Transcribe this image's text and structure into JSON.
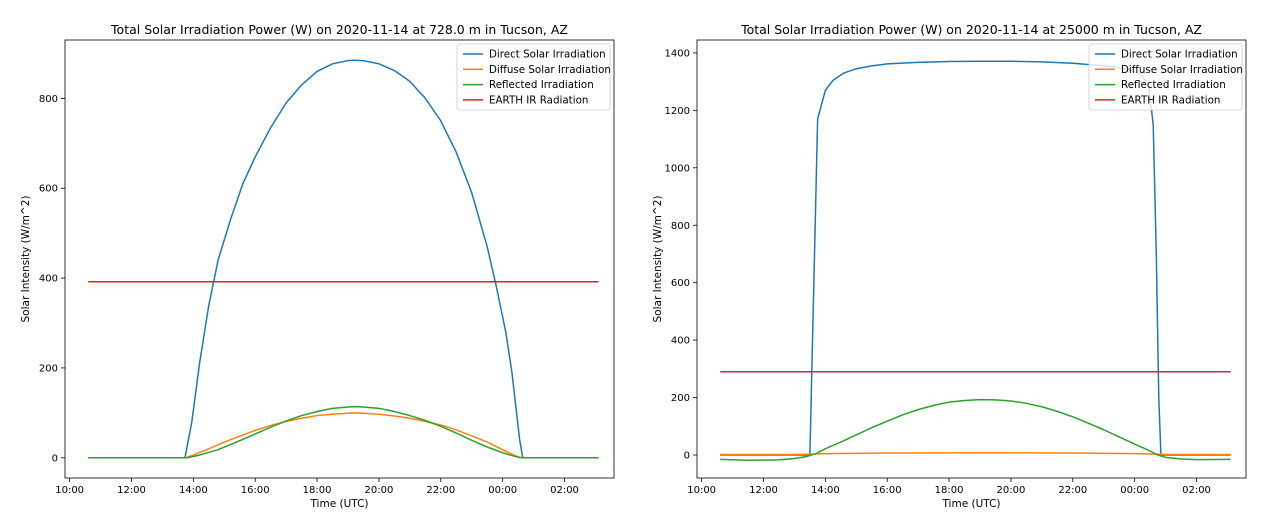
{
  "chart_data": [
    {
      "type": "line",
      "title": "Total Solar Irradiation Power (W) on 2020-11-14 at 728.0 m in Tucson, AZ",
      "xlabel": "Time (UTC)",
      "ylabel": "Solar Intensity (W/m^2)",
      "x_ticks": [
        "10:00",
        "12:00",
        "14:00",
        "16:00",
        "18:00",
        "20:00",
        "22:00",
        "00:00",
        "02:00"
      ],
      "y_ticks": [
        0,
        200,
        400,
        600,
        800
      ],
      "xlim_hours": [
        9.85,
        27.6
      ],
      "ylim": [
        -45,
        930
      ],
      "grid": false,
      "legend_position": "top-right",
      "series": [
        {
          "name": "Direct Solar Irradiation",
          "color": "#1f77b4",
          "points": [
            [
              10.6,
              0
            ],
            [
              13.73,
              0
            ],
            [
              13.95,
              80
            ],
            [
              14.2,
              210
            ],
            [
              14.5,
              340
            ],
            [
              14.8,
              440
            ],
            [
              15.2,
              530
            ],
            [
              15.6,
              610
            ],
            [
              16.0,
              670
            ],
            [
              16.5,
              735
            ],
            [
              17.0,
              790
            ],
            [
              17.5,
              830
            ],
            [
              18.0,
              860
            ],
            [
              18.5,
              877
            ],
            [
              19.0,
              884
            ],
            [
              19.2,
              885
            ],
            [
              19.5,
              884
            ],
            [
              20.0,
              877
            ],
            [
              20.5,
              862
            ],
            [
              21.0,
              838
            ],
            [
              21.5,
              800
            ],
            [
              22.0,
              750
            ],
            [
              22.5,
              680
            ],
            [
              23.0,
              590
            ],
            [
              23.5,
              470
            ],
            [
              23.8,
              380
            ],
            [
              24.1,
              280
            ],
            [
              24.3,
              190
            ],
            [
              24.45,
              100
            ],
            [
              24.55,
              40
            ],
            [
              24.65,
              0
            ],
            [
              27.1,
              0
            ]
          ]
        },
        {
          "name": "Diffuse Solar Irradiation",
          "color": "#ff7f0e",
          "points": [
            [
              10.6,
              0
            ],
            [
              13.75,
              0
            ],
            [
              14.0,
              6
            ],
            [
              14.5,
              20
            ],
            [
              15.0,
              35
            ],
            [
              15.5,
              48
            ],
            [
              16.0,
              61
            ],
            [
              16.5,
              72
            ],
            [
              17.0,
              81
            ],
            [
              17.5,
              88
            ],
            [
              18.0,
              94
            ],
            [
              18.5,
              97
            ],
            [
              19.0,
              99
            ],
            [
              19.2,
              100
            ],
            [
              19.5,
              99
            ],
            [
              20.0,
              97
            ],
            [
              20.5,
              93
            ],
            [
              21.0,
              88
            ],
            [
              21.5,
              81
            ],
            [
              22.0,
              73
            ],
            [
              22.5,
              62
            ],
            [
              23.0,
              49
            ],
            [
              23.5,
              35
            ],
            [
              24.0,
              18
            ],
            [
              24.3,
              8
            ],
            [
              24.5,
              2
            ],
            [
              24.6,
              0
            ],
            [
              27.1,
              0
            ]
          ]
        },
        {
          "name": "Reflected Irradiation",
          "color": "#2ca02c",
          "points": [
            [
              10.6,
              0
            ],
            [
              13.8,
              0
            ],
            [
              14.2,
              6
            ],
            [
              14.8,
              18
            ],
            [
              15.5,
              38
            ],
            [
              16.0,
              53
            ],
            [
              16.5,
              68
            ],
            [
              17.0,
              82
            ],
            [
              17.5,
              94
            ],
            [
              18.0,
              103
            ],
            [
              18.5,
              110
            ],
            [
              19.0,
              113
            ],
            [
              19.2,
              114
            ],
            [
              19.5,
              113
            ],
            [
              20.0,
              110
            ],
            [
              20.5,
              103
            ],
            [
              21.0,
              94
            ],
            [
              21.5,
              83
            ],
            [
              22.0,
              70
            ],
            [
              22.5,
              55
            ],
            [
              23.0,
              39
            ],
            [
              23.5,
              24
            ],
            [
              24.0,
              11
            ],
            [
              24.4,
              3
            ],
            [
              24.6,
              0
            ],
            [
              27.1,
              0
            ]
          ]
        },
        {
          "name": "EARTH IR Radiation",
          "color": "#d62728",
          "points": [
            [
              10.6,
              392
            ],
            [
              27.1,
              392
            ]
          ]
        }
      ]
    },
    {
      "type": "line",
      "title": "Total Solar Irradiation Power (W) on 2020-11-14 at 25000 m in Tucson, AZ",
      "xlabel": "Time (UTC)",
      "ylabel": "Solar Intensity (W/m^2)",
      "x_ticks": [
        "10:00",
        "12:00",
        "14:00",
        "16:00",
        "18:00",
        "20:00",
        "22:00",
        "00:00",
        "02:00"
      ],
      "y_ticks": [
        0,
        200,
        400,
        600,
        800,
        1000,
        1200,
        1400
      ],
      "xlim_hours": [
        9.85,
        27.6
      ],
      "ylim": [
        -80,
        1445
      ],
      "grid": false,
      "legend_position": "top-right",
      "series": [
        {
          "name": "Direct Solar Irradiation",
          "color": "#1f77b4",
          "points": [
            [
              10.6,
              0
            ],
            [
              13.5,
              0
            ],
            [
              13.75,
              1170
            ],
            [
              14.0,
              1270
            ],
            [
              14.25,
              1305
            ],
            [
              14.6,
              1330
            ],
            [
              15.0,
              1345
            ],
            [
              15.5,
              1355
            ],
            [
              16.0,
              1362
            ],
            [
              17.0,
              1367
            ],
            [
              18.0,
              1370
            ],
            [
              19.0,
              1371
            ],
            [
              20.0,
              1371
            ],
            [
              21.0,
              1369
            ],
            [
              22.0,
              1364
            ],
            [
              22.8,
              1357
            ],
            [
              23.4,
              1350
            ],
            [
              23.9,
              1340
            ],
            [
              24.2,
              1325
            ],
            [
              24.45,
              1290
            ],
            [
              24.6,
              1150
            ],
            [
              24.7,
              700
            ],
            [
              24.78,
              200
            ],
            [
              24.85,
              0
            ],
            [
              27.1,
              0
            ]
          ]
        },
        {
          "name": "Diffuse Solar Irradiation",
          "color": "#ff7f0e",
          "points": [
            [
              10.6,
              2
            ],
            [
              13.0,
              2
            ],
            [
              13.5,
              3
            ],
            [
              14.0,
              5
            ],
            [
              16.0,
              7
            ],
            [
              19.0,
              7.5
            ],
            [
              22.0,
              7
            ],
            [
              24.0,
              5
            ],
            [
              24.6,
              3
            ],
            [
              25.0,
              2
            ],
            [
              27.1,
              2
            ]
          ]
        },
        {
          "name": "Reflected Irradiation",
          "color": "#2ca02c",
          "points": [
            [
              10.6,
              -15
            ],
            [
              11.5,
              -18
            ],
            [
              12.5,
              -17
            ],
            [
              13.0,
              -12
            ],
            [
              13.4,
              -5
            ],
            [
              13.7,
              5
            ],
            [
              14.0,
              22
            ],
            [
              14.5,
              45
            ],
            [
              15.0,
              70
            ],
            [
              15.5,
              95
            ],
            [
              16.0,
              118
            ],
            [
              16.5,
              140
            ],
            [
              17.0,
              158
            ],
            [
              17.5,
              173
            ],
            [
              18.0,
              184
            ],
            [
              18.5,
              190
            ],
            [
              19.0,
              193
            ],
            [
              19.5,
              192
            ],
            [
              20.0,
              188
            ],
            [
              20.5,
              180
            ],
            [
              21.0,
              168
            ],
            [
              21.5,
              152
            ],
            [
              22.0,
              133
            ],
            [
              22.5,
              111
            ],
            [
              23.0,
              88
            ],
            [
              23.5,
              63
            ],
            [
              24.0,
              38
            ],
            [
              24.5,
              14
            ],
            [
              24.75,
              0
            ],
            [
              25.0,
              -8
            ],
            [
              25.5,
              -14
            ],
            [
              26.0,
              -16
            ],
            [
              27.1,
              -15
            ]
          ]
        },
        {
          "name": "EARTH IR Radiation",
          "color": "#d62728",
          "points": [
            [
              10.6,
              290
            ],
            [
              27.1,
              290
            ]
          ]
        }
      ]
    }
  ]
}
